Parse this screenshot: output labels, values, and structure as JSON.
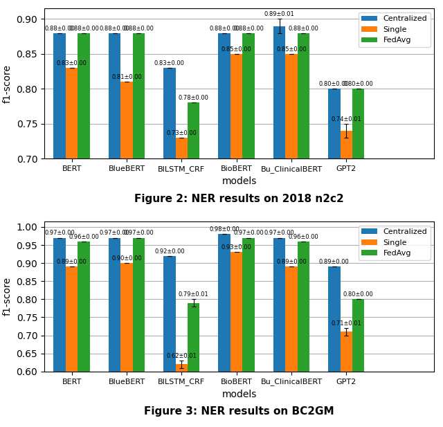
{
  "chart_data": [
    {
      "type": "bar",
      "caption": "Figure 2: NER results on 2018 n2c2",
      "xlabel": "models",
      "ylabel": "f1-score",
      "categories": [
        "BERT",
        "BlueBERT",
        "BILSTM_CRF",
        "BioBERT",
        "Bu_ClinicalBERT",
        "GPT2"
      ],
      "series": [
        {
          "name": "Centralized",
          "values": [
            0.88,
            0.88,
            0.83,
            0.88,
            0.89,
            0.8
          ],
          "errors": [
            0.0,
            0.0,
            0.0,
            0.0,
            0.01,
            0.0
          ],
          "value_labels": [
            "0.88±0.00",
            "0.88±0.00",
            "0.83±0.00",
            "0.88±0.00",
            "0.89±0.01",
            "0.80±0.00"
          ]
        },
        {
          "name": "Single",
          "values": [
            0.83,
            0.81,
            0.73,
            0.85,
            0.85,
            0.74
          ],
          "errors": [
            0.0,
            0.0,
            0.0,
            0.0,
            0.0,
            0.01
          ],
          "value_labels": [
            "0.83±0.00",
            "0.81±0.00",
            "0.73±0.00",
            "0.85±0.00",
            "0.85±0.00",
            "0.74±0.01"
          ]
        },
        {
          "name": "FedAvg",
          "values": [
            0.88,
            0.88,
            0.78,
            0.88,
            0.88,
            0.8
          ],
          "errors": [
            0.0,
            0.0,
            0.0,
            0.0,
            0.0,
            0.0
          ],
          "value_labels": [
            "0.88±0.00",
            "0.88±0.00",
            "0.78±0.00",
            "0.88±0.00",
            "0.88±0.00",
            "0.80±0.00"
          ]
        }
      ],
      "ylim": [
        0.7,
        0.915
      ],
      "yticks": [
        {
          "value": 0.7,
          "label": "0.70"
        },
        0.75,
        {
          "value": 0.8,
          "label": "0.80"
        },
        0.85,
        {
          "value": 0.9,
          "label": "0.90"
        }
      ],
      "grid": true,
      "legend": "upper right",
      "data_labels": true
    },
    {
      "type": "bar",
      "caption": "Figure 3: NER results on BC2GM",
      "xlabel": "models",
      "ylabel": "f1-score",
      "categories": [
        "BERT",
        "BlueBERT",
        "BILSTM_CRF",
        "BioBERT",
        "Bu_ClinicalBERT",
        "GPT2"
      ],
      "series": [
        {
          "name": "Centralized",
          "values": [
            0.97,
            0.97,
            0.92,
            0.98,
            0.97,
            0.89
          ],
          "errors": [
            0.0,
            0.0,
            0.0,
            0.0,
            0.0,
            0.0
          ],
          "value_labels": [
            "0.97±0.00",
            "0.97±0.00",
            "0.92±0.00",
            "0.98±0.00",
            "0.97±0.00",
            "0.89±0.00"
          ]
        },
        {
          "name": "Single",
          "values": [
            0.89,
            0.9,
            0.62,
            0.93,
            0.89,
            0.71
          ],
          "errors": [
            0.0,
            0.0,
            0.01,
            0.0,
            0.0,
            0.01
          ],
          "value_labels": [
            "0.89±0.00",
            "0.90±0.00",
            "0.62±0.01",
            "0.93±0.00",
            "0.89±0.00",
            "0.71±0.01"
          ]
        },
        {
          "name": "FedAvg",
          "values": [
            0.96,
            0.97,
            0.79,
            0.97,
            0.96,
            0.8
          ],
          "errors": [
            0.0,
            0.0,
            0.01,
            0.0,
            0.0,
            0.0
          ],
          "value_labels": [
            "0.96±0.00",
            "0.97±0.00",
            "0.79±0.01",
            "0.97±0.00",
            "0.96±0.00",
            "0.80±0.00"
          ]
        }
      ],
      "ylim": [
        0.6,
        1.015
      ],
      "yticks": [
        {
          "value": 0.6,
          "label": "0.60"
        },
        0.65,
        {
          "value": 0.7,
          "label": "0.70"
        },
        0.75,
        {
          "value": 0.8,
          "label": "0.80"
        },
        0.85,
        {
          "value": 0.9,
          "label": "0.90"
        },
        0.95,
        {
          "value": 1.0,
          "label": "1.00"
        }
      ],
      "grid": true,
      "legend": "upper right",
      "data_labels": true
    }
  ]
}
